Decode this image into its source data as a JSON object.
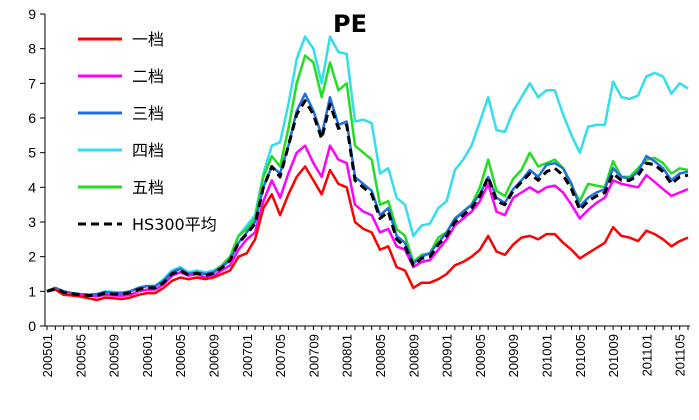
{
  "chart_data": {
    "type": "line",
    "title": "PE",
    "xlabel": "",
    "ylabel": "",
    "ylim": [
      0,
      9
    ],
    "yticks": [
      "0",
      "1",
      "2",
      "3",
      "4",
      "5",
      "6",
      "7",
      "8",
      "9"
    ],
    "x": [
      "200501",
      "200502",
      "200503",
      "200504",
      "200505",
      "200506",
      "200507",
      "200508",
      "200509",
      "200510",
      "200511",
      "200512",
      "200601",
      "200602",
      "200603",
      "200604",
      "200605",
      "200606",
      "200607",
      "200608",
      "200609",
      "200610",
      "200611",
      "200612",
      "200701",
      "200702",
      "200703",
      "200704",
      "200705",
      "200706",
      "200707",
      "200708",
      "200709",
      "200710",
      "200711",
      "200712",
      "200801",
      "200802",
      "200803",
      "200804",
      "200805",
      "200806",
      "200807",
      "200808",
      "200809",
      "200810",
      "200811",
      "200812",
      "200901",
      "200902",
      "200903",
      "200904",
      "200905",
      "200906",
      "200907",
      "200908",
      "200909",
      "200910",
      "200911",
      "200912",
      "201001",
      "201002",
      "201003",
      "201004",
      "201005",
      "201006",
      "201007",
      "201008",
      "201009",
      "201010",
      "201011",
      "201012",
      "201101",
      "201102",
      "201103",
      "201104",
      "201105",
      "201106"
    ],
    "xticklabels": [
      "200501",
      "200505",
      "200509",
      "200601",
      "200605",
      "200609",
      "200701",
      "200705",
      "200709",
      "200801",
      "200805",
      "200809",
      "200901",
      "200905",
      "200909",
      "201001",
      "201005",
      "201009",
      "201101",
      "201105"
    ],
    "series": [
      {
        "name": "一档",
        "color": "#ff0000",
        "dash": false,
        "values": [
          1.0,
          1.05,
          0.9,
          0.88,
          0.85,
          0.8,
          0.75,
          0.82,
          0.8,
          0.78,
          0.82,
          0.9,
          0.95,
          0.95,
          1.1,
          1.3,
          1.4,
          1.35,
          1.4,
          1.35,
          1.4,
          1.5,
          1.6,
          2.0,
          2.1,
          2.5,
          3.4,
          3.8,
          3.2,
          3.8,
          4.3,
          4.6,
          4.2,
          3.8,
          4.5,
          4.1,
          4.0,
          3.0,
          2.8,
          2.7,
          2.2,
          2.3,
          1.7,
          1.6,
          1.1,
          1.25,
          1.25,
          1.35,
          1.5,
          1.75,
          1.85,
          2.0,
          2.2,
          2.6,
          2.15,
          2.05,
          2.35,
          2.55,
          2.6,
          2.5,
          2.65,
          2.65,
          2.4,
          2.2,
          1.95,
          2.1,
          2.25,
          2.4,
          2.85,
          2.6,
          2.55,
          2.45,
          2.75,
          2.65,
          2.5,
          2.3,
          2.45,
          2.55
        ]
      },
      {
        "name": "二档",
        "color": "#ff00ff",
        "dash": false,
        "values": [
          1.0,
          1.05,
          0.95,
          0.92,
          0.9,
          0.88,
          0.85,
          0.9,
          0.88,
          0.87,
          0.9,
          1.0,
          1.05,
          1.05,
          1.2,
          1.45,
          1.55,
          1.45,
          1.5,
          1.4,
          1.45,
          1.6,
          1.75,
          2.2,
          2.5,
          2.7,
          3.6,
          4.2,
          3.7,
          4.4,
          5.0,
          5.2,
          4.7,
          4.3,
          5.2,
          4.8,
          4.7,
          3.5,
          3.3,
          3.2,
          2.7,
          2.8,
          2.3,
          2.2,
          1.7,
          1.85,
          1.9,
          2.2,
          2.5,
          2.9,
          3.1,
          3.3,
          3.6,
          4.1,
          3.3,
          3.2,
          3.7,
          3.85,
          4.0,
          3.85,
          4.0,
          4.05,
          3.85,
          3.5,
          3.1,
          3.35,
          3.55,
          3.7,
          4.2,
          4.1,
          4.05,
          4.0,
          4.35,
          4.15,
          3.95,
          3.75,
          3.85,
          3.95
        ]
      },
      {
        "name": "三档",
        "color": "#1f6fe0",
        "dash": false,
        "values": [
          1.0,
          1.1,
          1.0,
          0.95,
          0.92,
          0.9,
          0.92,
          0.98,
          0.95,
          0.95,
          1.0,
          1.1,
          1.15,
          1.15,
          1.3,
          1.55,
          1.65,
          1.5,
          1.55,
          1.5,
          1.55,
          1.7,
          1.9,
          2.4,
          2.7,
          3.0,
          4.0,
          4.6,
          4.4,
          5.2,
          6.2,
          6.7,
          6.2,
          5.5,
          6.6,
          5.8,
          5.9,
          4.3,
          4.1,
          3.9,
          3.2,
          3.4,
          2.6,
          2.4,
          1.8,
          2.0,
          2.1,
          2.4,
          2.7,
          3.1,
          3.3,
          3.5,
          3.8,
          4.3,
          3.7,
          3.55,
          3.95,
          4.2,
          4.5,
          4.3,
          4.65,
          4.7,
          4.55,
          4.1,
          3.45,
          3.7,
          3.85,
          3.95,
          4.55,
          4.3,
          4.25,
          4.45,
          4.9,
          4.75,
          4.55,
          4.2,
          4.4,
          4.45
        ]
      },
      {
        "name": "四档",
        "color": "#33ddee",
        "dash": false,
        "values": [
          1.0,
          1.1,
          1.0,
          0.95,
          0.92,
          0.9,
          0.92,
          1.0,
          0.98,
          0.97,
          1.0,
          1.1,
          1.15,
          1.15,
          1.35,
          1.6,
          1.7,
          1.55,
          1.6,
          1.55,
          1.6,
          1.75,
          2.0,
          2.6,
          2.9,
          3.2,
          4.4,
          5.2,
          5.3,
          6.4,
          7.7,
          8.35,
          8.0,
          7.0,
          8.35,
          7.9,
          7.85,
          5.9,
          5.95,
          5.85,
          4.4,
          4.55,
          3.7,
          3.5,
          2.6,
          2.9,
          2.95,
          3.4,
          3.6,
          4.5,
          4.8,
          5.2,
          5.9,
          6.6,
          5.65,
          5.6,
          6.2,
          6.6,
          7.0,
          6.6,
          6.8,
          6.8,
          6.1,
          5.5,
          5.0,
          5.75,
          5.8,
          5.8,
          7.05,
          6.6,
          6.55,
          6.65,
          7.2,
          7.3,
          7.2,
          6.7,
          7.0,
          6.85
        ]
      },
      {
        "name": "五档",
        "color": "#22dd22",
        "dash": false,
        "values": [
          1.0,
          1.1,
          1.0,
          0.95,
          0.92,
          0.9,
          0.92,
          0.98,
          0.95,
          0.95,
          1.0,
          1.1,
          1.15,
          1.15,
          1.3,
          1.55,
          1.65,
          1.5,
          1.55,
          1.5,
          1.55,
          1.75,
          2.0,
          2.6,
          2.8,
          3.1,
          4.3,
          4.9,
          4.6,
          5.7,
          7.0,
          7.8,
          7.6,
          6.6,
          7.6,
          6.8,
          7.0,
          5.2,
          5.0,
          4.8,
          3.5,
          3.6,
          2.8,
          2.6,
          1.85,
          2.05,
          2.1,
          2.55,
          2.7,
          3.05,
          3.3,
          3.5,
          4.0,
          4.8,
          3.9,
          3.75,
          4.25,
          4.5,
          5.0,
          4.6,
          4.7,
          4.8,
          4.55,
          4.05,
          3.6,
          4.1,
          4.05,
          4.0,
          4.75,
          4.3,
          4.3,
          4.55,
          4.8,
          4.85,
          4.7,
          4.4,
          4.55,
          4.5
        ]
      },
      {
        "name": "HS300平均",
        "color": "#000000",
        "dash": true,
        "values": [
          1.0,
          1.08,
          0.97,
          0.93,
          0.9,
          0.88,
          0.88,
          0.95,
          0.92,
          0.92,
          0.96,
          1.06,
          1.1,
          1.1,
          1.25,
          1.5,
          1.6,
          1.47,
          1.52,
          1.46,
          1.52,
          1.68,
          1.9,
          2.4,
          2.65,
          2.95,
          4.0,
          4.6,
          4.3,
          5.2,
          6.1,
          6.5,
          6.1,
          5.4,
          6.4,
          5.7,
          5.8,
          4.2,
          4.0,
          3.8,
          3.1,
          3.3,
          2.5,
          2.3,
          1.75,
          1.95,
          2.0,
          2.35,
          2.6,
          3.0,
          3.2,
          3.4,
          3.75,
          4.3,
          3.6,
          3.5,
          3.9,
          4.15,
          4.4,
          4.2,
          4.45,
          4.55,
          4.35,
          3.95,
          3.35,
          3.6,
          3.75,
          3.85,
          4.4,
          4.2,
          4.2,
          4.35,
          4.7,
          4.65,
          4.45,
          4.1,
          4.3,
          4.35
        ]
      }
    ]
  }
}
